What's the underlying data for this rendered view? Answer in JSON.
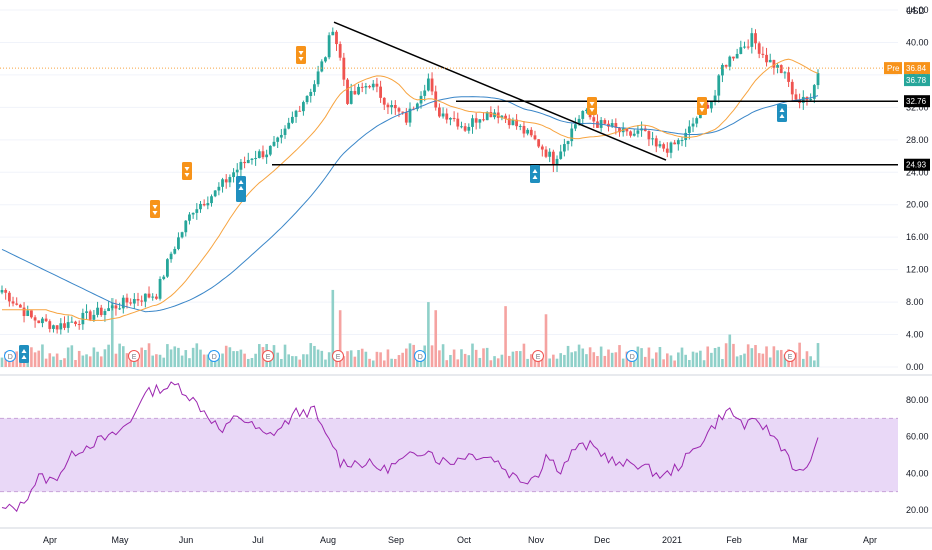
{
  "currency": "USD",
  "chart_data": {
    "type": "candlestick",
    "x_axis_labels": [
      "Apr",
      "May",
      "Jun",
      "Jul",
      "Aug",
      "Sep",
      "Oct",
      "Nov",
      "Dec",
      "2021",
      "Feb",
      "Mar",
      "Apr"
    ],
    "price_axis": {
      "min": 0,
      "max": 45,
      "ticks": [
        "44.00",
        "40.00",
        "36.00",
        "32.00",
        "28.00",
        "24.00",
        "20.00",
        "16.00",
        "12.00",
        "8.00",
        "4.00",
        "0.00"
      ]
    },
    "rsi_axis": {
      "ticks": [
        "80.00",
        "60.00",
        "40.00",
        "20.00"
      ],
      "band": [
        30,
        70
      ]
    },
    "price_tags": {
      "pre_label": "Pre",
      "pre_value": "36.84",
      "last_value": "36.78",
      "resistance_value": "32.76",
      "support_value": "24.93"
    },
    "horizontal_levels": [
      32.76,
      24.93
    ],
    "trendline": {
      "from": [
        "Aug",
        42.5
      ],
      "to": [
        "Dec",
        25.5
      ]
    },
    "price_anchors": [
      [
        0,
        9.5
      ],
      [
        8,
        6.0
      ],
      [
        15,
        5.0
      ],
      [
        25,
        6.5
      ],
      [
        35,
        8.2
      ],
      [
        42,
        9.0
      ],
      [
        46,
        14.0
      ],
      [
        52,
        19.5
      ],
      [
        58,
        21.5
      ],
      [
        63,
        24.0
      ],
      [
        68,
        26.0
      ],
      [
        72,
        26.5
      ],
      [
        76,
        28.0
      ],
      [
        80,
        31.5
      ],
      [
        85,
        35.0
      ],
      [
        88,
        38.5
      ],
      [
        90,
        42.0
      ],
      [
        92,
        38.0
      ],
      [
        94,
        33.0
      ],
      [
        100,
        35.0
      ],
      [
        106,
        32.0
      ],
      [
        110,
        30.5
      ],
      [
        114,
        34.0
      ],
      [
        116,
        35.5
      ],
      [
        118,
        31.5
      ],
      [
        122,
        31.0
      ],
      [
        126,
        29.5
      ],
      [
        130,
        31.0
      ],
      [
        134,
        31.5
      ],
      [
        138,
        30.5
      ],
      [
        142,
        29.0
      ],
      [
        146,
        27.5
      ],
      [
        148,
        26.5
      ],
      [
        150,
        25.5
      ],
      [
        154,
        28.5
      ],
      [
        158,
        31.5
      ],
      [
        162,
        30.0
      ],
      [
        166,
        29.5
      ],
      [
        170,
        28.5
      ],
      [
        174,
        29.0
      ],
      [
        178,
        27.0
      ],
      [
        182,
        27.0
      ],
      [
        186,
        28.5
      ],
      [
        190,
        31.5
      ],
      [
        194,
        33.5
      ],
      [
        196,
        37.0
      ],
      [
        200,
        39.0
      ],
      [
        204,
        40.5
      ],
      [
        208,
        38.0
      ],
      [
        212,
        36.5
      ],
      [
        214,
        35.0
      ],
      [
        216,
        32.5
      ],
      [
        218,
        33.5
      ],
      [
        220,
        32.5
      ],
      [
        222,
        36.8
      ]
    ],
    "rsi_anchors": [
      [
        0,
        20
      ],
      [
        5,
        22
      ],
      [
        10,
        38
      ],
      [
        14,
        36
      ],
      [
        20,
        52
      ],
      [
        25,
        57
      ],
      [
        30,
        60
      ],
      [
        35,
        68
      ],
      [
        38,
        82
      ],
      [
        42,
        86
      ],
      [
        48,
        88
      ],
      [
        52,
        80
      ],
      [
        56,
        72
      ],
      [
        60,
        62
      ],
      [
        64,
        72
      ],
      [
        68,
        66
      ],
      [
        72,
        60
      ],
      [
        76,
        65
      ],
      [
        80,
        73
      ],
      [
        85,
        74
      ],
      [
        88,
        60
      ],
      [
        90,
        56
      ],
      [
        92,
        46
      ],
      [
        96,
        46
      ],
      [
        100,
        45
      ],
      [
        104,
        42
      ],
      [
        108,
        46
      ],
      [
        112,
        50
      ],
      [
        116,
        54
      ],
      [
        118,
        48
      ],
      [
        122,
        46
      ],
      [
        126,
        50
      ],
      [
        130,
        50
      ],
      [
        134,
        48
      ],
      [
        138,
        40
      ],
      [
        142,
        36
      ],
      [
        146,
        40
      ],
      [
        148,
        50
      ],
      [
        152,
        42
      ],
      [
        156,
        54
      ],
      [
        160,
        55
      ],
      [
        164,
        50
      ],
      [
        168,
        44
      ],
      [
        172,
        46
      ],
      [
        176,
        42
      ],
      [
        180,
        38
      ],
      [
        184,
        44
      ],
      [
        188,
        52
      ],
      [
        192,
        62
      ],
      [
        196,
        72
      ],
      [
        198,
        74
      ],
      [
        202,
        66
      ],
      [
        206,
        68
      ],
      [
        210,
        60
      ],
      [
        214,
        50
      ],
      [
        216,
        40
      ],
      [
        218,
        40
      ],
      [
        222,
        57
      ]
    ],
    "markers": [
      {
        "label": "D",
        "month_pos": 0
      },
      {
        "label": "E",
        "month_pos": 1
      },
      {
        "label": "D",
        "month_pos": 2
      },
      {
        "label": "E",
        "month_pos": 3
      },
      {
        "label": "E",
        "month_pos": 4
      },
      {
        "label": "D",
        "month_pos": 5
      },
      {
        "label": "E",
        "month_pos": 6
      },
      {
        "label": "D",
        "month_pos": 7
      },
      {
        "label": "E",
        "month_pos": 8
      }
    ],
    "colors": {
      "up": "#26a69a",
      "down": "#ef5350",
      "sma_fast": "#f7a440",
      "sma_slow": "#3a86c8",
      "rsi": "#9c27b0",
      "rsi_band": "#e9d8f7",
      "pre_tag": "#f7931a",
      "last_tag": "#26a69a",
      "level": "#000000"
    }
  }
}
